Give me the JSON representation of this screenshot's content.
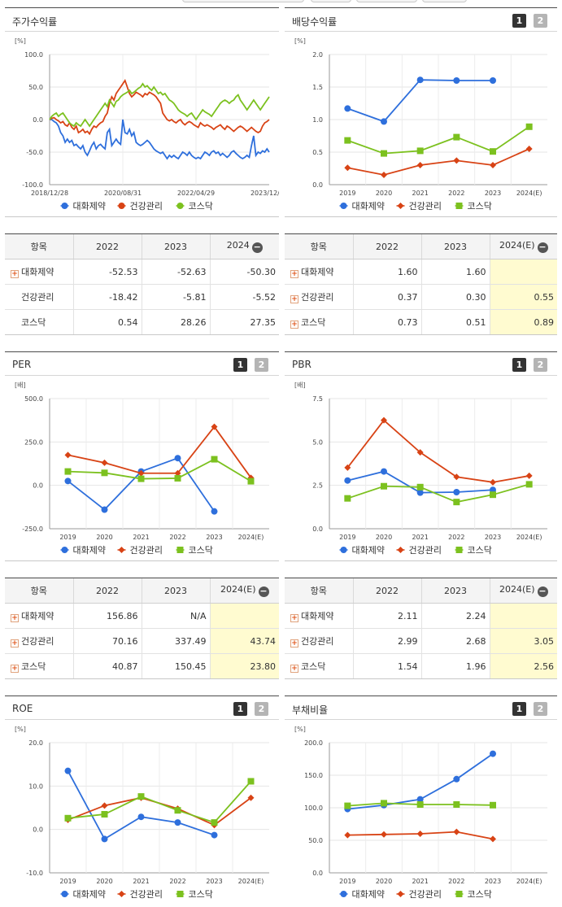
{
  "colors": {
    "company": "#2e6fdc",
    "industry": "#d84315",
    "index": "#7cc11f",
    "estimate_bg": "#fffbd0"
  },
  "icons": {
    "expand": "plus-icon",
    "collapse": "minus-icon"
  },
  "panels": {
    "stock": {
      "title": "주가수익률"
    },
    "dividend": {
      "title": "배당수익률",
      "btn1": "1",
      "btn2": "2"
    },
    "per": {
      "title": "PER",
      "btn1": "1",
      "btn2": "2"
    },
    "pbr": {
      "title": "PBR",
      "btn1": "1",
      "btn2": "2"
    },
    "roe": {
      "title": "ROE",
      "btn1": "1",
      "btn2": "2"
    },
    "debt": {
      "title": "부채비율",
      "btn1": "1",
      "btn2": "2"
    }
  },
  "chart_data": [
    {
      "id": "stock",
      "type": "line",
      "unit": "[%]",
      "ylim": [
        -100,
        100
      ],
      "yticks": [
        "100.0",
        "50.0",
        "0.0",
        "-50.0",
        "-100.0"
      ],
      "xticks": [
        "2018/12/28",
        "2020/08/31",
        "2022/04/29",
        "2023/12/28"
      ],
      "series": [
        {
          "name": "대화제약",
          "color": "#2e6fdc",
          "values": [
            0,
            0,
            -3,
            -5,
            -10,
            -20,
            -25,
            -35,
            -30,
            -35,
            -32,
            -40,
            -38,
            -42,
            -45,
            -40,
            -50,
            -55,
            -48,
            -40,
            -35,
            -45,
            -40,
            -38,
            -42,
            -45,
            -20,
            -15,
            -40,
            -35,
            -30,
            -35,
            -38,
            0,
            -20,
            -22,
            -15,
            -25,
            -20,
            -35,
            -38,
            -40,
            -38,
            -35,
            -32,
            -35,
            -40,
            -45,
            -48,
            -50,
            -52,
            -50,
            -55,
            -60,
            -55,
            -58,
            -55,
            -58,
            -60,
            -55,
            -50,
            -52,
            -55,
            -50,
            -55,
            -58,
            -60,
            -58,
            -60,
            -55,
            -50,
            -52,
            -55,
            -50,
            -48,
            -52,
            -50,
            -55,
            -52,
            -55,
            -58,
            -55,
            -50,
            -48,
            -52,
            -55,
            -58,
            -60,
            -58,
            -55,
            -58,
            -40,
            -25,
            -55,
            -50,
            -52,
            -48,
            -50,
            -45,
            -50
          ]
        },
        {
          "name": "건강관리",
          "color": "#d84315",
          "values": [
            0,
            2,
            3,
            0,
            -2,
            -5,
            -3,
            -8,
            -10,
            -5,
            -12,
            -15,
            -10,
            -20,
            -18,
            -15,
            -20,
            -18,
            -22,
            -15,
            -10,
            -12,
            -8,
            -5,
            -3,
            5,
            10,
            25,
            35,
            30,
            40,
            45,
            50,
            55,
            60,
            50,
            40,
            35,
            38,
            42,
            40,
            38,
            35,
            40,
            38,
            42,
            40,
            38,
            35,
            30,
            25,
            10,
            5,
            0,
            -2,
            0,
            -3,
            -5,
            -2,
            0,
            -5,
            -8,
            -5,
            -3,
            -5,
            -8,
            -10,
            -12,
            -5,
            -8,
            -10,
            -8,
            -10,
            -12,
            -15,
            -12,
            -10,
            -8,
            -12,
            -15,
            -10,
            -12,
            -15,
            -18,
            -15,
            -12,
            -10,
            -12,
            -15,
            -18,
            -15,
            -12,
            -15,
            -18,
            -20,
            -18,
            -10,
            -5,
            -3,
            0
          ]
        },
        {
          "name": "코스닥",
          "color": "#7cc11f",
          "values": [
            0,
            5,
            8,
            10,
            5,
            8,
            10,
            5,
            0,
            -5,
            -8,
            -10,
            -5,
            -8,
            -10,
            -5,
            0,
            -5,
            -10,
            -5,
            0,
            5,
            10,
            15,
            20,
            25,
            20,
            30,
            25,
            20,
            28,
            30,
            35,
            38,
            40,
            42,
            45,
            40,
            42,
            45,
            48,
            50,
            55,
            50,
            52,
            48,
            45,
            50,
            45,
            40,
            42,
            38,
            40,
            35,
            30,
            28,
            25,
            20,
            15,
            12,
            10,
            8,
            5,
            8,
            10,
            5,
            0,
            5,
            10,
            15,
            12,
            10,
            8,
            5,
            10,
            15,
            20,
            25,
            28,
            30,
            28,
            25,
            28,
            30,
            35,
            38,
            30,
            25,
            20,
            15,
            20,
            25,
            30,
            25,
            20,
            15,
            20,
            25,
            30,
            35
          ]
        }
      ]
    },
    {
      "id": "dividend",
      "type": "line",
      "unit": "[%]",
      "ylim": [
        0,
        2
      ],
      "yticks": [
        "2.0",
        "1.5",
        "1.0",
        "0.5",
        "0.0"
      ],
      "categories": [
        "2019",
        "2020",
        "2021",
        "2022",
        "2023",
        "2024(E)"
      ],
      "series": [
        {
          "name": "대화제약",
          "color": "#2e6fdc",
          "marker": "circle",
          "values": [
            1.17,
            0.97,
            1.61,
            1.6,
            1.6,
            null
          ]
        },
        {
          "name": "건강관리",
          "color": "#d84315",
          "marker": "diamond",
          "values": [
            0.26,
            0.15,
            0.3,
            0.37,
            0.3,
            0.55
          ]
        },
        {
          "name": "코스닥",
          "color": "#7cc11f",
          "marker": "square",
          "values": [
            0.68,
            0.48,
            0.52,
            0.73,
            0.51,
            0.89
          ]
        }
      ]
    },
    {
      "id": "per",
      "type": "line",
      "unit": "[배]",
      "ylim": [
        -250,
        500
      ],
      "yticks": [
        "500.0",
        "250.0",
        "0.0",
        "-250.0"
      ],
      "categories": [
        "2019",
        "2020",
        "2021",
        "2022",
        "2023",
        "2024(E)"
      ],
      "series": [
        {
          "name": "대화제약",
          "color": "#2e6fdc",
          "marker": "circle",
          "values": [
            25,
            -140,
            80,
            156.86,
            -150,
            null
          ]
        },
        {
          "name": "건강관리",
          "color": "#d84315",
          "marker": "diamond",
          "values": [
            175,
            130,
            70,
            70.16,
            337.49,
            43.74
          ]
        },
        {
          "name": "코스닥",
          "color": "#7cc11f",
          "marker": "square",
          "values": [
            80,
            72,
            38,
            40.87,
            150.45,
            23.8
          ]
        }
      ]
    },
    {
      "id": "pbr",
      "type": "line",
      "unit": "[배]",
      "ylim": [
        0,
        7.5
      ],
      "yticks": [
        "7.5",
        "5.0",
        "2.5",
        "0.0"
      ],
      "categories": [
        "2019",
        "2020",
        "2021",
        "2022",
        "2023",
        "2024(E)"
      ],
      "series": [
        {
          "name": "대화제약",
          "color": "#2e6fdc",
          "marker": "circle",
          "values": [
            2.78,
            3.3,
            2.08,
            2.11,
            2.24,
            null
          ]
        },
        {
          "name": "건강관리",
          "color": "#d84315",
          "marker": "diamond",
          "values": [
            3.52,
            6.25,
            4.4,
            2.99,
            2.68,
            3.05
          ]
        },
        {
          "name": "코스닥",
          "color": "#7cc11f",
          "marker": "square",
          "values": [
            1.75,
            2.45,
            2.4,
            1.54,
            1.96,
            2.56
          ]
        }
      ]
    },
    {
      "id": "roe",
      "type": "line",
      "unit": "[%]",
      "ylim": [
        -10,
        20
      ],
      "yticks": [
        "20.0",
        "10.0",
        "0.0",
        "-10.0"
      ],
      "categories": [
        "2019",
        "2020",
        "2021",
        "2022",
        "2023",
        "2024(E)"
      ],
      "series": [
        {
          "name": "대화제약",
          "color": "#2e6fdc",
          "marker": "circle",
          "values": [
            13.5,
            -2.2,
            2.9,
            1.6,
            -1.3,
            null
          ]
        },
        {
          "name": "건강관리",
          "color": "#d84315",
          "marker": "diamond",
          "values": [
            2.2,
            5.5,
            7.3,
            4.8,
            1.0,
            7.3
          ]
        },
        {
          "name": "코스닥",
          "color": "#7cc11f",
          "marker": "square",
          "values": [
            2.6,
            3.5,
            7.6,
            4.4,
            1.6,
            11.1
          ]
        }
      ]
    },
    {
      "id": "debt",
      "type": "line",
      "unit": "[%]",
      "ylim": [
        0,
        200
      ],
      "yticks": [
        "200.0",
        "150.0",
        "100.0",
        "50.0",
        "0.0"
      ],
      "categories": [
        "2019",
        "2020",
        "2021",
        "2022",
        "2023",
        "2024(E)"
      ],
      "series": [
        {
          "name": "대화제약",
          "color": "#2e6fdc",
          "marker": "circle",
          "values": [
            98,
            104,
            113,
            144,
            183,
            null
          ]
        },
        {
          "name": "건강관리",
          "color": "#d84315",
          "marker": "diamond",
          "values": [
            58,
            59,
            60,
            63,
            52,
            null
          ]
        },
        {
          "name": "코스닥",
          "color": "#7cc11f",
          "marker": "square",
          "values": [
            103,
            107,
            105,
            105,
            104,
            null
          ]
        }
      ]
    }
  ],
  "legend": [
    "대화제약",
    "건강관리",
    "코스닥"
  ],
  "tables": {
    "stock": {
      "headers": [
        "항목",
        "2022",
        "2023",
        "2024"
      ],
      "rows": [
        {
          "label": "대화제약",
          "cells": [
            "-52.53",
            "-52.63",
            "-50.30"
          ]
        },
        {
          "label": "건강관리",
          "cells": [
            "-18.42",
            "-5.81",
            "-5.52"
          ]
        },
        {
          "label": "코스닥",
          "cells": [
            "0.54",
            "28.26",
            "27.35"
          ]
        }
      ]
    },
    "dividend": {
      "headers": [
        "항목",
        "2022",
        "2023",
        "2024(E)"
      ],
      "rows": [
        {
          "label": "대화제약",
          "cells": [
            "1.60",
            "1.60",
            ""
          ]
        },
        {
          "label": "건강관리",
          "cells": [
            "0.37",
            "0.30",
            "0.55"
          ]
        },
        {
          "label": "코스닥",
          "cells": [
            "0.73",
            "0.51",
            "0.89"
          ]
        }
      ]
    },
    "per": {
      "headers": [
        "항목",
        "2022",
        "2023",
        "2024(E)"
      ],
      "rows": [
        {
          "label": "대화제약",
          "cells": [
            "156.86",
            "N/A",
            ""
          ]
        },
        {
          "label": "건강관리",
          "cells": [
            "70.16",
            "337.49",
            "43.74"
          ]
        },
        {
          "label": "코스닥",
          "cells": [
            "40.87",
            "150.45",
            "23.80"
          ]
        }
      ]
    },
    "pbr": {
      "headers": [
        "항목",
        "2022",
        "2023",
        "2024(E)"
      ],
      "rows": [
        {
          "label": "대화제약",
          "cells": [
            "2.11",
            "2.24",
            ""
          ]
        },
        {
          "label": "건강관리",
          "cells": [
            "2.99",
            "2.68",
            "3.05"
          ]
        },
        {
          "label": "코스닥",
          "cells": [
            "1.54",
            "1.96",
            "2.56"
          ]
        }
      ]
    }
  }
}
